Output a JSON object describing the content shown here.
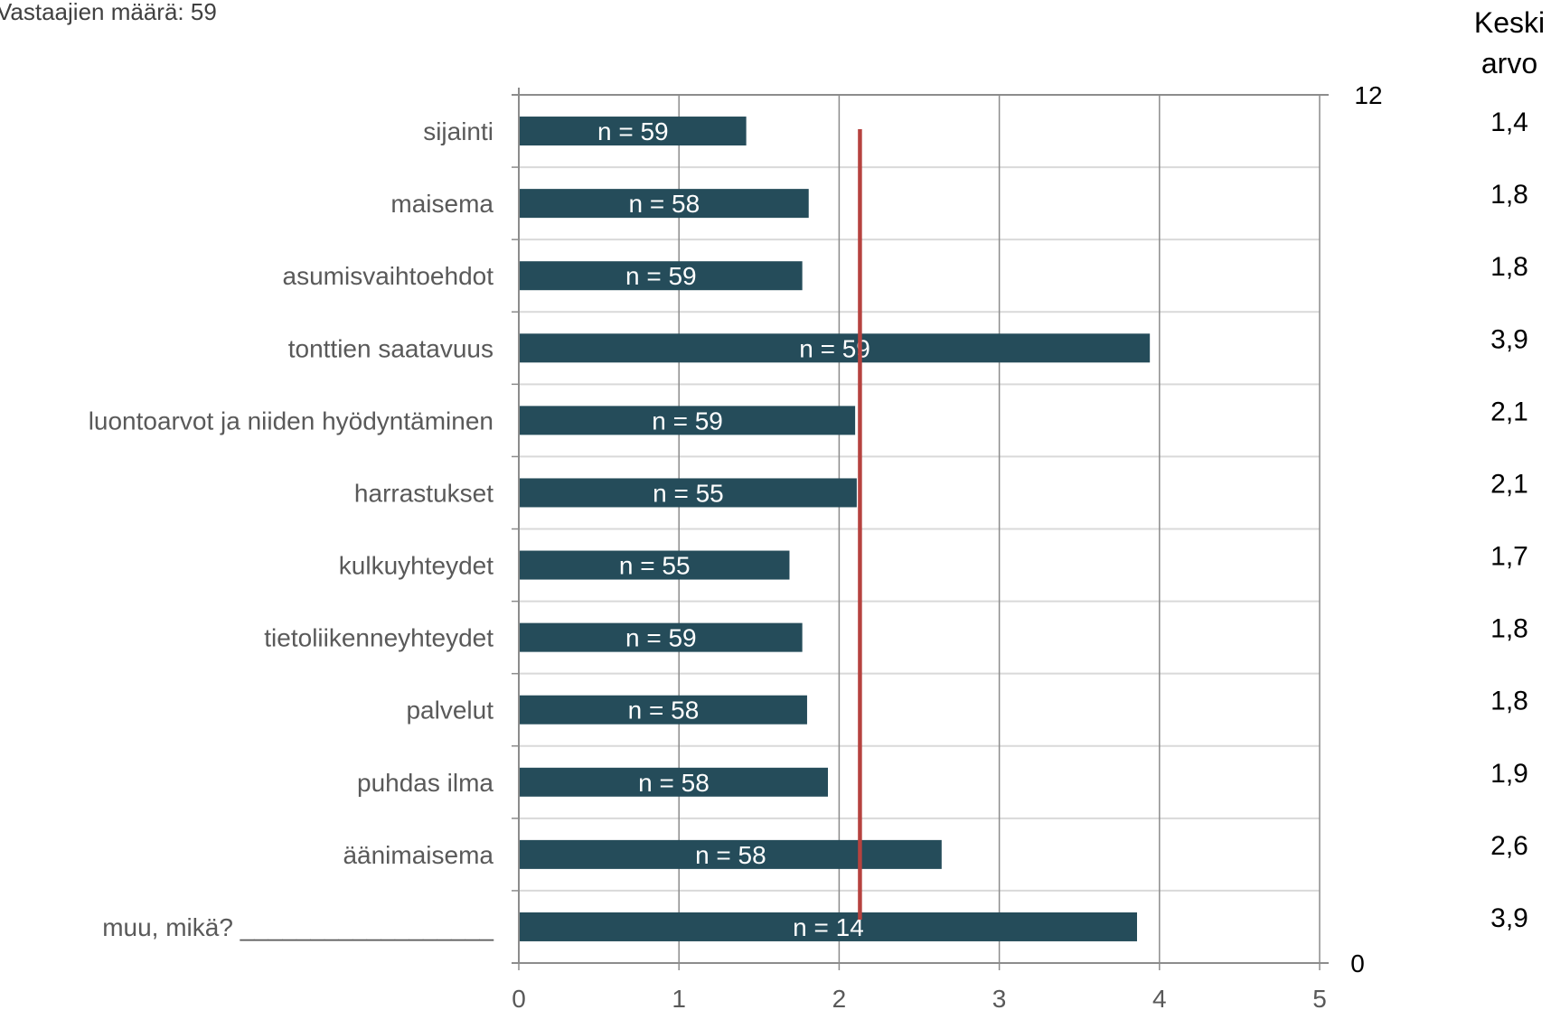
{
  "respondents_text": "Vastaajien määrä: 59",
  "mean_header": [
    "Keski",
    "arvo"
  ],
  "colors": {
    "bar": "#254c5a",
    "mean_line": "#b6423f",
    "grid": "#d9d9d9",
    "axis": "#8c8c8c",
    "text": "#595959"
  },
  "chart_data": {
    "type": "bar",
    "orientation": "horizontal",
    "categories": [
      "sijainti",
      "maisema",
      "asumisvaihtoehdot",
      "tonttien saatavuus",
      "luontoarvot ja niiden hyödyntäminen",
      "harrastukset",
      "kulkuyhteydet",
      "tietoliikenneyhteydet",
      "palvelut",
      "puhdas ilma",
      "äänimaisema",
      "muu, mikä? __________________"
    ],
    "values": [
      1.42,
      1.81,
      1.77,
      3.94,
      2.1,
      2.11,
      1.69,
      1.77,
      1.8,
      1.93,
      2.64,
      3.86
    ],
    "bar_labels": [
      "n = 59",
      "n = 58",
      "n = 59",
      "n = 59",
      "n = 59",
      "n = 55",
      "n = 55",
      "n = 59",
      "n = 58",
      "n = 58",
      "n = 58",
      "n = 14"
    ],
    "mean_labels": [
      "1,4",
      "1,8",
      "1,8",
      "3,9",
      "2,1",
      "2,1",
      "1,7",
      "1,8",
      "1,8",
      "1,9",
      "2,6",
      "3,9"
    ],
    "xlim": [
      0,
      5
    ],
    "x_ticks": [
      "0",
      "1",
      "2",
      "3",
      "4",
      "5"
    ],
    "secondary_axis": {
      "min": 0,
      "max": 12,
      "tick_labels": [
        "0",
        "12"
      ]
    },
    "overall_mean": 2.13,
    "grid": true
  }
}
